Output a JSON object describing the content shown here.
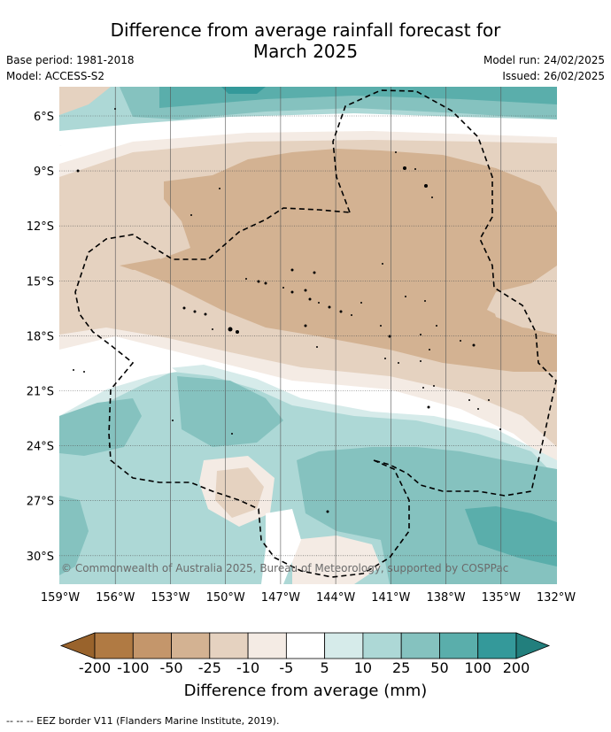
{
  "header": {
    "title_line1": "Difference from average rainfall forecast for",
    "title_line2": "March 2025",
    "base_period": "Base period: 1981-2018",
    "model": "Model: ACCESS-S2",
    "model_run": "Model run: 24/02/2025",
    "issued": "Issued: 26/02/2025"
  },
  "map": {
    "lon_labels": [
      "159°W",
      "156°W",
      "153°W",
      "150°W",
      "147°W",
      "144°W",
      "141°W",
      "138°W",
      "135°W",
      "132°W"
    ],
    "lat_labels": [
      "6°S",
      "9°S",
      "12°S",
      "15°S",
      "18°S",
      "21°S",
      "24°S",
      "27°S",
      "30°S"
    ],
    "copyright": "© Commonwealth of Australia 2025, Bureau of Meteorology, supported by COSPPac"
  },
  "colorbar": {
    "labels": [
      "-200",
      "-100",
      "-50",
      "-25",
      "-10",
      "-5",
      "5",
      "10",
      "25",
      "50",
      "100",
      "200"
    ],
    "colors": [
      "#b07a43",
      "#c4966b",
      "#d3b292",
      "#e5d2c0",
      "#f4ebe4",
      "#ffffff",
      "#d6ebea",
      "#add8d6",
      "#85c2bf",
      "#5aaeab",
      "#34999a"
    ],
    "low_extend_color": "#99632c",
    "high_extend_color": "#227f7d",
    "title": "Difference from average (mm)"
  },
  "footnote": "--  --  -- EEZ border V11 (Flanders Marine Institute, 2019)."
}
